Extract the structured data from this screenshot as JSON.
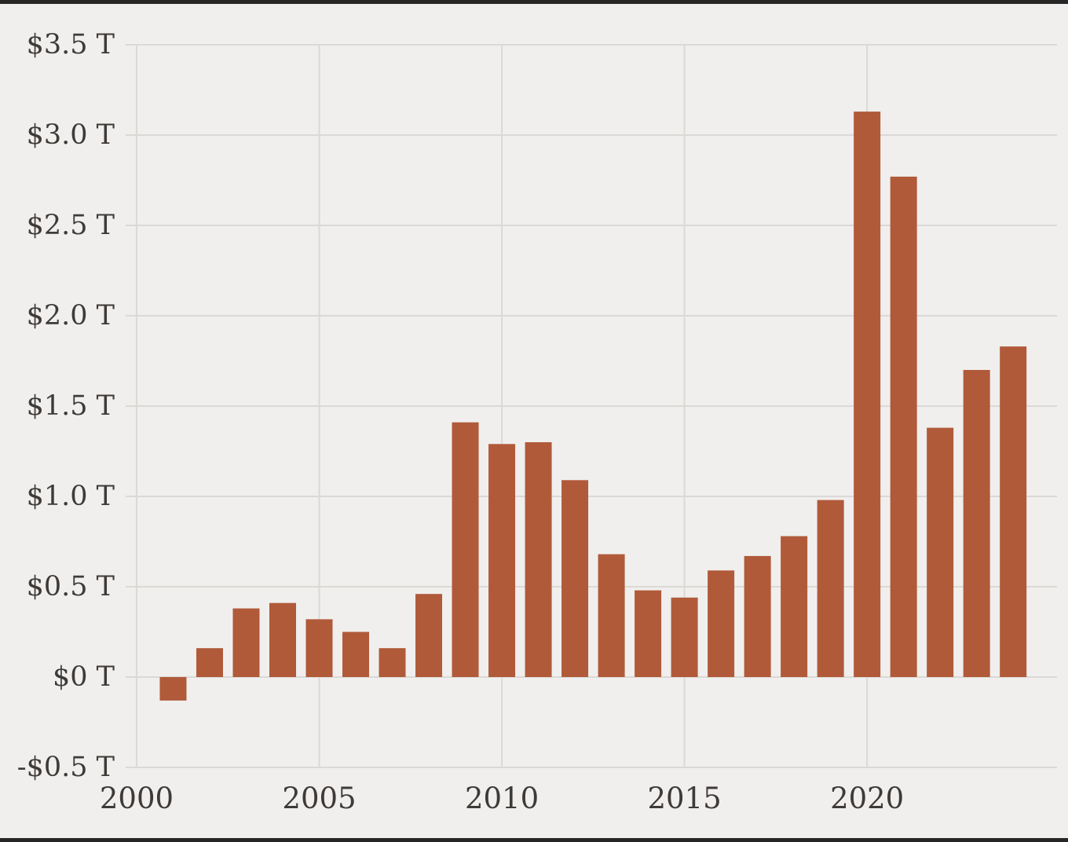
{
  "chart_data": {
    "type": "bar",
    "years": [
      2001,
      2002,
      2003,
      2004,
      2005,
      2006,
      2007,
      2008,
      2009,
      2010,
      2011,
      2012,
      2013,
      2014,
      2015,
      2016,
      2017,
      2018,
      2019,
      2020,
      2021,
      2022,
      2023,
      2024
    ],
    "values": [
      -0.13,
      0.16,
      0.38,
      0.41,
      0.32,
      0.25,
      0.16,
      0.46,
      1.41,
      1.29,
      1.3,
      1.09,
      0.68,
      0.48,
      0.44,
      0.59,
      0.67,
      0.78,
      0.98,
      3.13,
      2.77,
      1.38,
      1.7,
      1.83
    ],
    "value_unit": "$ trillions",
    "x_ticks": [
      {
        "value": 2000,
        "label": "2000"
      },
      {
        "value": 2005,
        "label": "2005"
      },
      {
        "value": 2010,
        "label": "2010"
      },
      {
        "value": 2015,
        "label": "2015"
      },
      {
        "value": 2020,
        "label": "2020"
      }
    ],
    "y_ticks": [
      {
        "value": -0.5,
        "label": "-$0.5 T"
      },
      {
        "value": 0,
        "label": "$0 T"
      },
      {
        "value": 0.5,
        "label": "$0.5 T"
      },
      {
        "value": 1,
        "label": "$1.0 T"
      },
      {
        "value": 1.5,
        "label": "$1.5 T"
      },
      {
        "value": 2,
        "label": "$2.0 T"
      },
      {
        "value": 2.5,
        "label": "$2.5 T"
      },
      {
        "value": 3,
        "label": "$3.0 T"
      },
      {
        "value": 3.5,
        "label": "$3.5 T"
      }
    ],
    "xlim": [
      1999.7,
      2025.2
    ],
    "ylim": [
      -0.5,
      3.5
    ],
    "grid": true,
    "legend": false,
    "colors": {
      "bar": "#b05a3a",
      "background": "#f0efed",
      "grid": "#dbd9d6",
      "label": "#3e3a38"
    }
  }
}
